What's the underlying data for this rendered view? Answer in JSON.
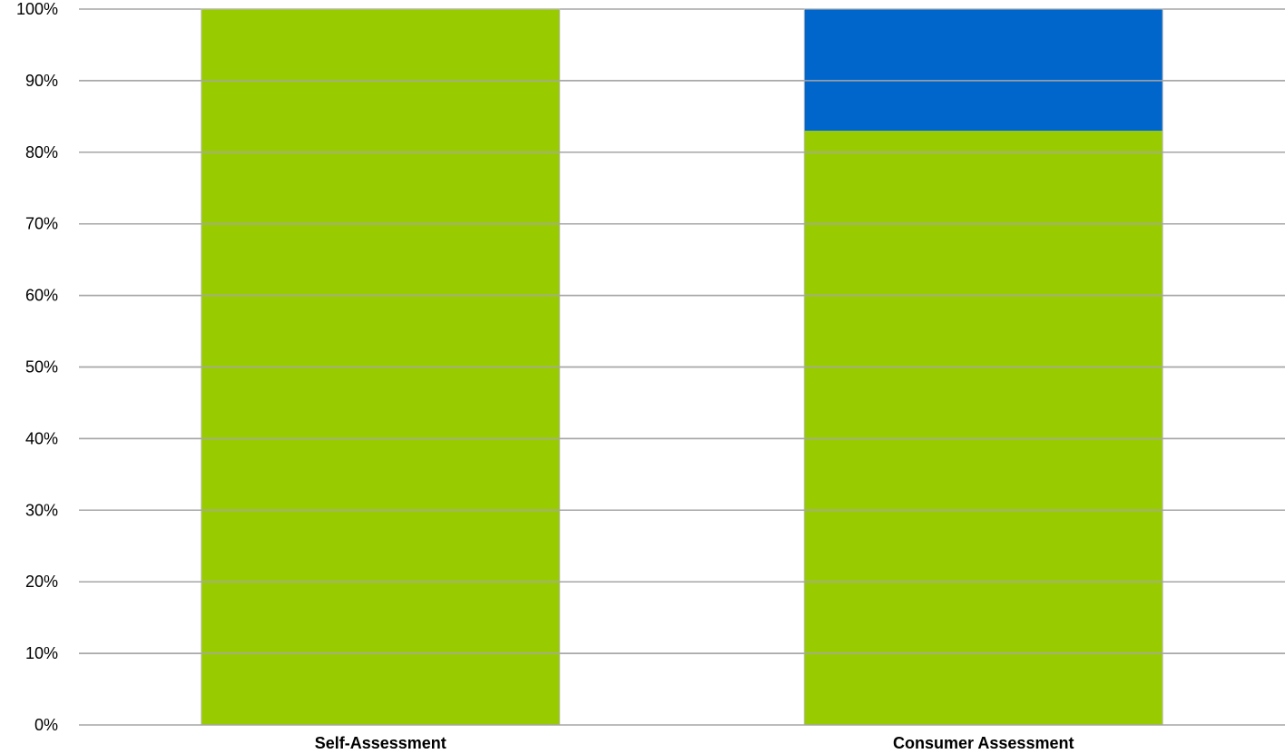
{
  "chart_data": {
    "type": "bar",
    "stacked": true,
    "title": "",
    "xlabel": "",
    "ylabel": "",
    "ylim": [
      0,
      100
    ],
    "y_ticks": [
      "0%",
      "10%",
      "20%",
      "30%",
      "40%",
      "50%",
      "60%",
      "70%",
      "80%",
      "90%",
      "100%"
    ],
    "grid": true,
    "legend": "none",
    "categories": [
      "Self-Assessment",
      "Consumer Assessment"
    ],
    "series": [
      {
        "values": [
          100,
          83
        ],
        "color": "#99cc00"
      },
      {
        "values": [
          0,
          17
        ],
        "color": "#0066cc"
      }
    ]
  }
}
